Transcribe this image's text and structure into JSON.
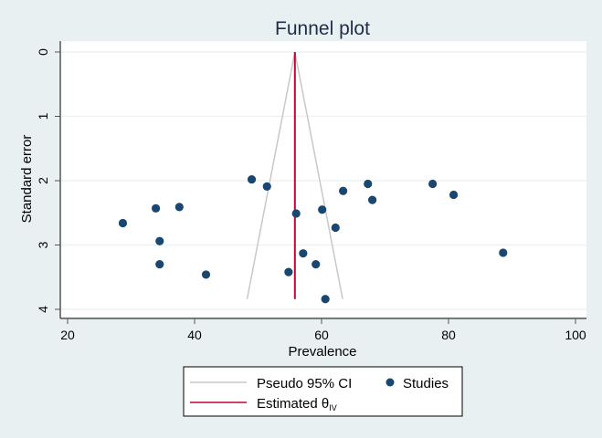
{
  "chart_data": {
    "type": "scatter",
    "title": "Funnel plot",
    "xlabel": "Prevalence",
    "ylabel": "Standard error",
    "xlim": [
      20,
      100
    ],
    "ylim": [
      0,
      4
    ],
    "y_reversed": true,
    "xticks": [
      "20",
      "40",
      "60",
      "80",
      "100"
    ],
    "yticks": [
      "0",
      "1",
      "2",
      "3",
      "4"
    ],
    "grid": true,
    "legend_placement": "bottom",
    "colors": {
      "studies": "#1a476f",
      "estimate": "#c10534",
      "ci": "#c8c8c8",
      "background": "#e9f0f2"
    },
    "pooled_estimate": 55.8,
    "ci_bottom_se": 3.84,
    "legend": {
      "ci_label": "Pseudo 95% CI",
      "studies_label": "Studies",
      "estimate_label": "Estimated θ",
      "estimate_subscript": "IV"
    },
    "points": [
      {
        "x": 49.0,
        "y": 1.98
      },
      {
        "x": 51.4,
        "y": 2.09
      },
      {
        "x": 33.9,
        "y": 2.43
      },
      {
        "x": 37.6,
        "y": 2.41
      },
      {
        "x": 28.7,
        "y": 2.66
      },
      {
        "x": 56.0,
        "y": 2.51
      },
      {
        "x": 34.5,
        "y": 2.94
      },
      {
        "x": 34.5,
        "y": 3.3
      },
      {
        "x": 41.8,
        "y": 3.46
      },
      {
        "x": 54.8,
        "y": 3.42
      },
      {
        "x": 57.1,
        "y": 3.13
      },
      {
        "x": 59.1,
        "y": 3.3
      },
      {
        "x": 60.6,
        "y": 3.84
      },
      {
        "x": 63.4,
        "y": 2.16
      },
      {
        "x": 67.3,
        "y": 2.05
      },
      {
        "x": 68.0,
        "y": 2.3
      },
      {
        "x": 60.1,
        "y": 2.45
      },
      {
        "x": 62.2,
        "y": 2.73
      },
      {
        "x": 77.5,
        "y": 2.05
      },
      {
        "x": 80.8,
        "y": 2.22
      },
      {
        "x": 88.6,
        "y": 3.12
      }
    ]
  }
}
